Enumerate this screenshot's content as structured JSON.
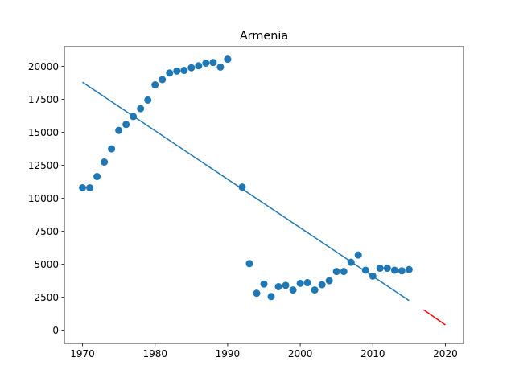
{
  "chart_data": {
    "type": "scatter",
    "title": "Armenia",
    "xlabel": "",
    "ylabel": "",
    "xlim": [
      1967.5,
      2022.5
    ],
    "ylim": [
      -1000,
      21500
    ],
    "xticks": [
      1970,
      1980,
      1990,
      2000,
      2010,
      2020
    ],
    "yticks": [
      0,
      2500,
      5000,
      7500,
      10000,
      12500,
      15000,
      17500,
      20000
    ],
    "grid": false,
    "series": [
      {
        "kind": "scatter",
        "color": "#1f77b4",
        "x": [
          1970,
          1971,
          1972,
          1973,
          1974,
          1975,
          1976,
          1977,
          1978,
          1979,
          1980,
          1981,
          1982,
          1983,
          1984,
          1985,
          1986,
          1987,
          1988,
          1989,
          1990,
          1992,
          1993,
          1994,
          1995,
          1996,
          1997,
          1998,
          1999,
          2000,
          2001,
          2002,
          2003,
          2004,
          2005,
          2006,
          2007,
          2008,
          2009,
          2010,
          2011,
          2012,
          2013,
          2014,
          2015
        ],
        "y": [
          10800,
          10800,
          11650,
          12750,
          13750,
          15150,
          15600,
          16200,
          16800,
          17450,
          18600,
          19000,
          19500,
          19650,
          19700,
          19900,
          20050,
          20250,
          20300,
          19950,
          20550,
          10850,
          5050,
          2800,
          3500,
          2550,
          3300,
          3400,
          3050,
          3550,
          3600,
          3050,
          3450,
          3750,
          4450,
          4450,
          5150,
          5700,
          4550,
          4100,
          4700,
          4700,
          4550,
          4500,
          4600
        ]
      },
      {
        "kind": "line",
        "color": "#1f77b4",
        "x": [
          1970,
          2015
        ],
        "y": [
          18800,
          2250
        ]
      },
      {
        "kind": "line",
        "color": "#ff0000",
        "x": [
          2017,
          2020
        ],
        "y": [
          1550,
          400
        ]
      }
    ]
  }
}
